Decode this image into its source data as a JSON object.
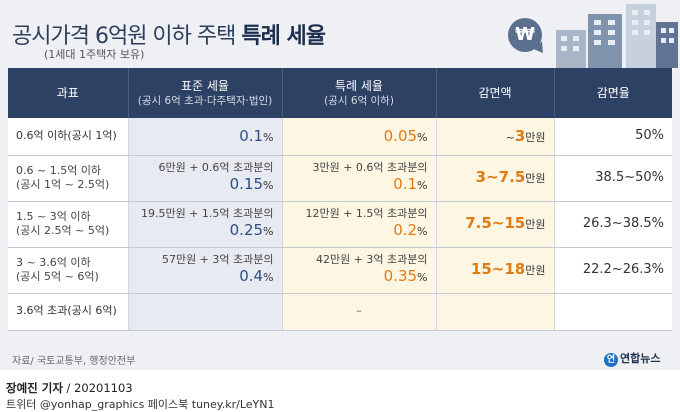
{
  "header": {
    "title_main": "공시가격 6억원 이하 주택 ",
    "title_bold": "특례 세율",
    "subtitle": "(1세대 1주택자 보유)",
    "bubble_symbol": "₩"
  },
  "table": {
    "columns": [
      {
        "label": "과표",
        "sub": ""
      },
      {
        "label": "표준 세율",
        "sub": "(공시 6억 초과·다주택자·법인)"
      },
      {
        "label": "특례 세율",
        "sub": "(공시 6억 이하)"
      },
      {
        "label": "감면액",
        "sub": ""
      },
      {
        "label": "감면율",
        "sub": ""
      }
    ],
    "rows": [
      {
        "base1": "0.6억 이하(공시 1억)",
        "base2": "",
        "std1": "",
        "std2": "0.1",
        "std_unit": "%",
        "sp1": "",
        "sp2": "0.05",
        "sp_unit": "%",
        "red_pre": "~",
        "red_num": "3",
        "red_unit": "만원",
        "rate": "50%"
      },
      {
        "base1": "0.6 ~ 1.5억 이하",
        "base2": "(공시 1억 ~ 2.5억)",
        "std1": "6만원 + 0.6억 초과분의",
        "std2": "0.15",
        "std_unit": "%",
        "sp1": "3만원 + 0.6억 초과분의",
        "sp2": "0.1",
        "sp_unit": "%",
        "red_pre": "",
        "red_num": "3~7.5",
        "red_unit": "만원",
        "rate": "38.5~50%"
      },
      {
        "base1": "1.5 ~ 3억 이하",
        "base2": "(공시 2.5억 ~ 5억)",
        "std1": "19.5만원 + 1.5억 초과분의",
        "std2": "0.25",
        "std_unit": "%",
        "sp1": "12만원 + 1.5억 초과분의",
        "sp2": "0.2",
        "sp_unit": "%",
        "red_pre": "",
        "red_num": "7.5~15",
        "red_unit": "만원",
        "rate": "26.3~38.5%"
      },
      {
        "base1": "3 ~ 3.6억 이하",
        "base2": "(공시 5억 ~ 6억)",
        "std1": "57만원 + 3억 초과분의",
        "std2": "0.4",
        "std_unit": "%",
        "sp1": "42만원 + 3억 초과분의",
        "sp2": "0.35",
        "sp_unit": "%",
        "red_pre": "",
        "red_num": "15~18",
        "red_unit": "만원",
        "rate": "22.2~26.3%"
      },
      {
        "base1": "3.6억 초과(공시 6억)",
        "base2": "",
        "std1": "",
        "std2": "",
        "std_unit": "",
        "sp1": "",
        "sp2": "–",
        "sp_unit": "",
        "red_pre": "",
        "red_num": "",
        "red_unit": "",
        "rate": ""
      }
    ]
  },
  "footer": {
    "source": "자료/ 국토교통부, 행정안전부",
    "logo_text": "연합뉴스",
    "logo_mark": "연",
    "reporter": "장예진 기자",
    "date": " / 20201103",
    "social": "트위터 @yonhap_graphics  페이스북 tuney.kr/LeYN1"
  },
  "colors": {
    "header_bg": "#2c4163",
    "standard_col_bg": "#e7ebf1",
    "special_col_bg": "#fdf6e2",
    "accent_orange": "#e07b14",
    "accent_blue": "#2d4e87"
  }
}
